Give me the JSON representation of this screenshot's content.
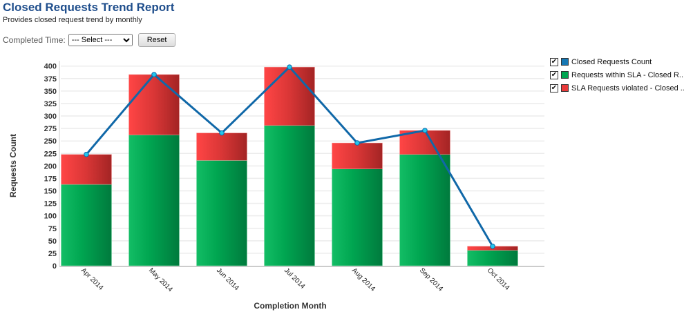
{
  "header": {
    "title": "Closed Requests Trend Report",
    "subtitle": "Provides closed request trend by monthly"
  },
  "filter": {
    "label": "Completed Time:",
    "select_value": "--- Select ---",
    "reset_label": "Reset"
  },
  "legend": [
    {
      "label": "Closed Requests Count",
      "color": "#1577b3",
      "checked": true
    },
    {
      "label": "Requests within SLA - Closed R...",
      "color": "#00a651",
      "checked": true
    },
    {
      "label": "SLA Requests violated - Closed ...",
      "color": "#e83a3a",
      "checked": true
    }
  ],
  "chart_data": {
    "type": "bar",
    "stacked": true,
    "xlabel": "Completion Month",
    "ylabel": "Requests Count",
    "ylim": [
      0,
      400
    ],
    "yticks": [
      0,
      25,
      50,
      75,
      100,
      125,
      150,
      175,
      200,
      225,
      250,
      275,
      300,
      325,
      350,
      375,
      400
    ],
    "grid": true,
    "legend_placement": "right",
    "categories": [
      "Apr 2014",
      "May 2014",
      "Jun 2014",
      "Jul 2014",
      "Aug 2014",
      "Sep 2014",
      "Oct 2014"
    ],
    "series": [
      {
        "name": "Requests within SLA - Closed R...",
        "type": "bar",
        "values": [
          163,
          262,
          211,
          281,
          194,
          223,
          31
        ]
      },
      {
        "name": "SLA Requests violated - Closed ...",
        "type": "bar",
        "values": [
          60,
          121,
          55,
          117,
          52,
          48,
          8
        ]
      },
      {
        "name": "Closed Requests Count",
        "type": "line",
        "values": [
          223,
          383,
          266,
          398,
          246,
          271,
          39
        ]
      }
    ]
  }
}
